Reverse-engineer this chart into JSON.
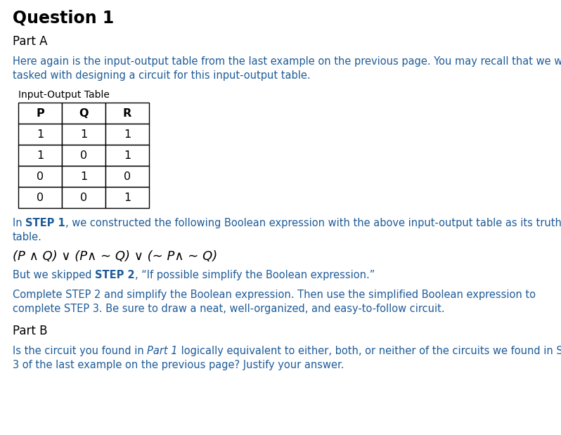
{
  "title": "Question 1",
  "part_a_label": "Part A",
  "part_b_label": "Part B",
  "intro_line1": "Here again is the input-output table from the last example on the previous page. You may recall that we were",
  "intro_line2": "tasked with designing a circuit for this input-output table.",
  "table_label": "Input-Output Table",
  "table_headers": [
    "P",
    "Q",
    "R"
  ],
  "table_rows": [
    [
      "1",
      "1",
      "1"
    ],
    [
      "1",
      "0",
      "1"
    ],
    [
      "0",
      "1",
      "0"
    ],
    [
      "0",
      "0",
      "1"
    ]
  ],
  "step1_line1_pre": "In ",
  "step1_line1_bold": "STEP 1",
  "step1_line1_post": ", we constructed the following Boolean expression with the above input-output table as its truth",
  "step1_line2": "table.",
  "boolean_expr": "(P ∧ Q) ∨ (P∧ ∼ Q) ∨ (∼ P∧ ∼ Q)",
  "step2_pre": "But we skipped ",
  "step2_bold": "STEP 2",
  "step2_post": ", “If possible simplify the Boolean expression.”",
  "complete_line1": "Complete STEP 2 and simplify the Boolean expression. Then use the simplified Boolean expression to",
  "complete_line2": "complete STEP 3. Be sure to draw a neat, well-organized, and easy-to-follow circuit.",
  "partb_pre": "Is the circuit you found in ",
  "partb_italic": "Part 1",
  "partb_mid": " logically equivalent to either, both, or neither of the circuits we found in STEP",
  "partb_line2": "3 of the last example on the previous page? Justify your answer.",
  "bg_color": "#ffffff",
  "text_color": "#1a1a1a",
  "blue_color": "#1f5c99",
  "black_color": "#000000",
  "title_fontsize": 17,
  "section_fontsize": 12,
  "body_fontsize": 10.5,
  "bool_fontsize": 13
}
